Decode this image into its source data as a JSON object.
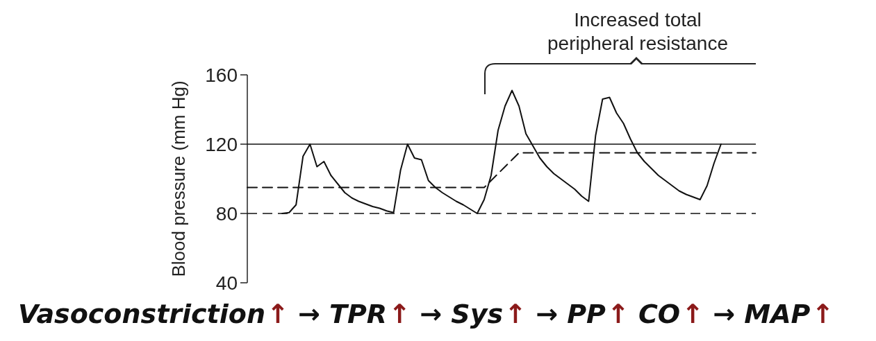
{
  "chart_data": {
    "type": "line",
    "ylabel": "Blood pressure (mm Hg)",
    "ylim": [
      40,
      160
    ],
    "yticks": [
      40,
      80,
      120,
      160
    ],
    "grid": false,
    "categories": [
      null,
      null,
      null,
      null,
      null,
      null,
      null,
      null,
      null,
      null,
      null,
      null,
      null,
      null,
      null,
      null,
      null,
      null,
      null,
      null,
      null,
      null,
      null,
      null,
      null,
      null,
      null,
      null,
      null,
      null,
      null,
      null,
      null,
      null,
      null,
      null,
      null,
      null,
      null,
      null,
      null,
      null,
      null,
      null,
      null,
      null,
      null,
      null,
      null,
      null,
      null,
      null,
      null,
      null,
      null,
      null,
      null,
      null,
      null,
      null,
      null,
      null,
      null,
      null,
      null,
      null,
      null,
      null,
      null,
      null,
      null,
      null,
      null,
      null
    ],
    "series": [
      {
        "color": "#111111",
        "line_style": "solid",
        "values": [
          null,
          null,
          null,
          null,
          null,
          80,
          80.5,
          85,
          113,
          120,
          107,
          110,
          102,
          97,
          92,
          89,
          87,
          85.5,
          84,
          83,
          81.5,
          80.5,
          105,
          120,
          112,
          111,
          99,
          95,
          92,
          89.5,
          87,
          85,
          82.5,
          80,
          88,
          102,
          128,
          142,
          151,
          142,
          126,
          119,
          112,
          107,
          103,
          100,
          97,
          94,
          90,
          87,
          125,
          146,
          147,
          138,
          132,
          123,
          115,
          110,
          106,
          102,
          99,
          96,
          93,
          91,
          89.5,
          88,
          96,
          109,
          120,
          null,
          null,
          null,
          null,
          null
        ]
      },
      {
        "color": "#111111",
        "line_style": "dashed",
        "values": [
          95,
          95,
          95,
          95,
          95,
          95,
          95,
          95,
          95,
          95,
          95,
          95,
          95,
          95,
          95,
          95,
          95,
          95,
          95,
          95,
          95,
          95,
          95,
          95,
          95,
          95,
          95,
          95,
          95,
          95,
          95,
          95,
          95,
          95,
          95,
          99,
          103,
          107,
          111,
          115,
          115,
          115,
          115,
          115,
          115,
          115,
          115,
          115,
          115,
          115,
          115,
          115,
          115,
          115,
          115,
          115,
          115,
          115,
          115,
          115,
          115,
          115,
          115,
          115,
          115,
          115,
          115,
          115,
          115,
          115,
          115,
          115,
          115,
          115
        ]
      }
    ],
    "ref_lines": [
      {
        "axis": "y",
        "value": 120,
        "line_style": "solid",
        "color": "#111111"
      },
      {
        "axis": "y",
        "value": 80,
        "line_style": "dashed",
        "color": "#111111"
      }
    ],
    "annotations": [
      "Increased total peripheral resistance",
      "Vasoconstriction↑ → TPR↑ → Sys↑ → PP↑ CO↑ → MAP↑"
    ]
  }
}
